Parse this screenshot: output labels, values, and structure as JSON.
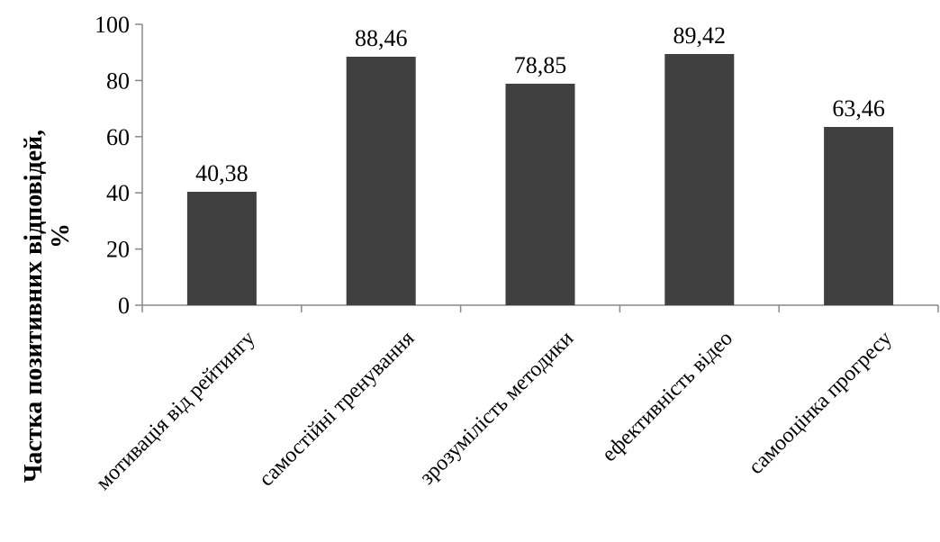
{
  "chart_data": {
    "type": "bar",
    "title": "",
    "xlabel": "",
    "ylabel_lines": [
      "Частка позитивних відповідей,",
      "%"
    ],
    "categories": [
      "мотивація від рейтингу",
      "самостійні тренування",
      "зрозумілість методики",
      "ефективність відео",
      "самооцінка прогресу"
    ],
    "values": [
      40.38,
      88.46,
      78.85,
      89.42,
      63.46
    ],
    "value_labels": [
      "40,38",
      "88,46",
      "78,85",
      "89,42",
      "63,46"
    ],
    "ylim": [
      0,
      100
    ],
    "yticks": [
      0,
      20,
      40,
      60,
      80,
      100
    ],
    "ytick_labels": [
      "0",
      "20",
      "40",
      "60",
      "80",
      "100"
    ],
    "grid": false,
    "legend": "none",
    "bar_color": "#404040"
  }
}
